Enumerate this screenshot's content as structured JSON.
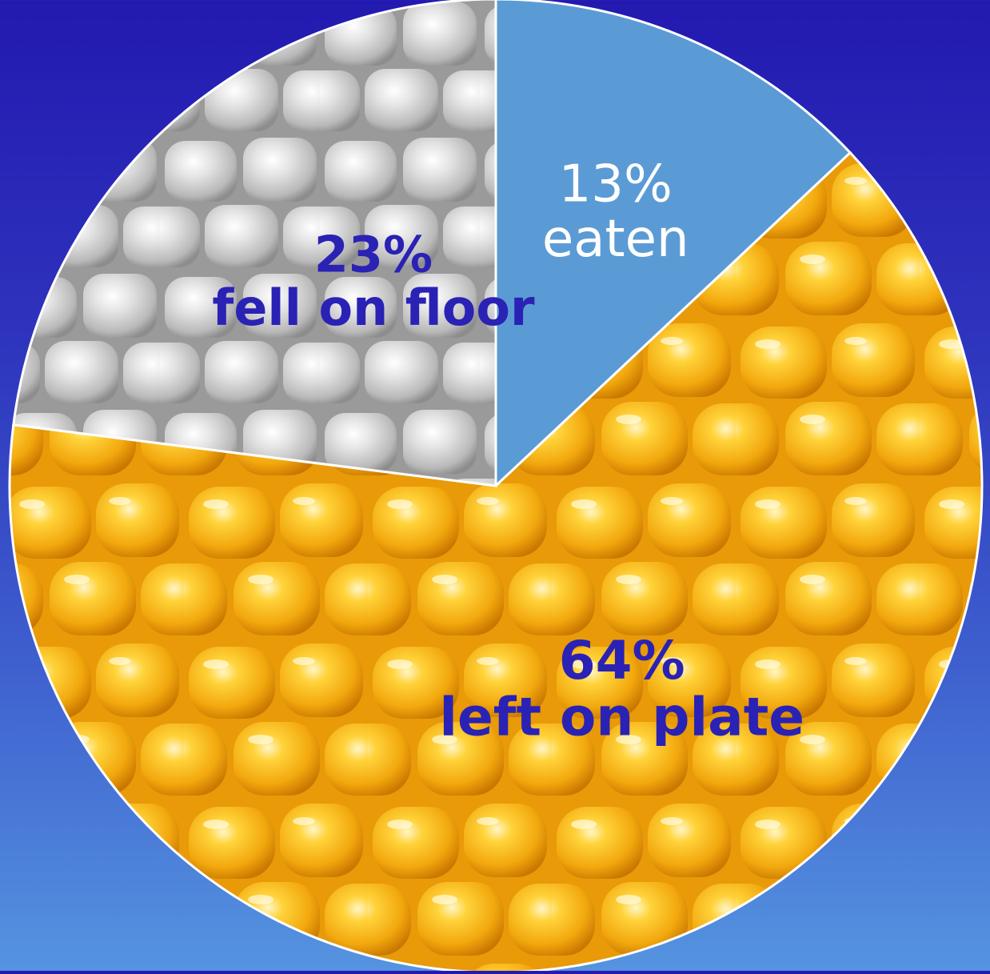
{
  "colors": {
    "background_top": "#2319b0",
    "background_bottom": "#5594e0",
    "pie_border": "#ffffff",
    "label_dark": "#2a22b4",
    "label_light": "#ffffff"
  },
  "chart_data": {
    "type": "pie",
    "title": "",
    "slices": [
      {
        "label": "eaten",
        "value_label": "13%",
        "value": 13,
        "color": "#5b9bd5",
        "fill_style": "solid",
        "text_color": "#ffffff"
      },
      {
        "label": "left on plate",
        "value_label": "64%",
        "value": 64,
        "color": "#f2b01d",
        "fill_style": "corn-photo",
        "text_color": "#2a22b4"
      },
      {
        "label": "fell on floor",
        "value_label": "23%",
        "value": 23,
        "color": "#c8c8c8",
        "fill_style": "grey-corn-photo",
        "text_color": "#2a22b4"
      }
    ]
  }
}
